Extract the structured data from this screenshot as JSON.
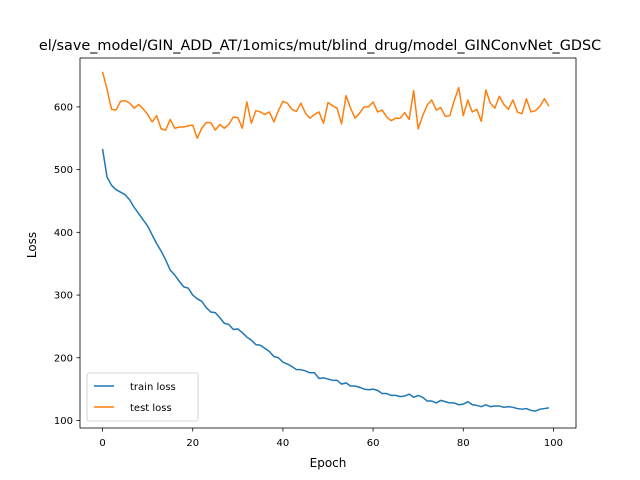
{
  "chart_data": {
    "type": "line",
    "title": "el/save_model/GIN_ADD_AT/1omics/mut/blind_drug/model_GINConvNet_GDSC",
    "xlabel": "Epoch",
    "ylabel": "Loss",
    "xlim": [
      -5,
      105
    ],
    "ylim": [
      88,
      678
    ],
    "xticks": [
      0,
      20,
      40,
      60,
      80,
      100
    ],
    "yticks": [
      100,
      200,
      300,
      400,
      500,
      600
    ],
    "grid": false,
    "legend_position": "lower-left",
    "series": [
      {
        "name": "train loss",
        "color": "#1f77b4",
        "x": [
          0,
          1,
          2,
          3,
          4,
          5,
          6,
          7,
          8,
          9,
          10,
          11,
          12,
          13,
          14,
          15,
          16,
          17,
          18,
          19,
          20,
          21,
          22,
          23,
          24,
          25,
          26,
          27,
          28,
          29,
          30,
          31,
          32,
          33,
          34,
          35,
          36,
          37,
          38,
          39,
          40,
          41,
          42,
          43,
          44,
          45,
          46,
          47,
          48,
          49,
          50,
          51,
          52,
          53,
          54,
          55,
          56,
          57,
          58,
          59,
          60,
          61,
          62,
          63,
          64,
          65,
          66,
          67,
          68,
          69,
          70,
          71,
          72,
          73,
          74,
          75,
          76,
          77,
          78,
          79,
          80,
          81,
          82,
          83,
          84,
          85,
          86,
          87,
          88,
          89,
          90,
          91,
          92,
          93,
          94,
          95,
          96,
          97,
          98,
          99
        ],
        "y": [
          533,
          488,
          475,
          468,
          464,
          460,
          452,
          440,
          430,
          420,
          410,
          396,
          382,
          370,
          356,
          340,
          332,
          322,
          313,
          311,
          300,
          294,
          290,
          280,
          273,
          272,
          264,
          255,
          253,
          245,
          246,
          240,
          233,
          228,
          221,
          220,
          215,
          210,
          202,
          200,
          193,
          190,
          186,
          181,
          181,
          179,
          176,
          176,
          167,
          168,
          166,
          164,
          164,
          158,
          160,
          155,
          155,
          153,
          150,
          149,
          150,
          148,
          143,
          143,
          140,
          140,
          138,
          139,
          142,
          137,
          140,
          137,
          131,
          131,
          128,
          132,
          130,
          128,
          128,
          125,
          126,
          130,
          125,
          124,
          122,
          125,
          122,
          123,
          123,
          121,
          122,
          121,
          119,
          118,
          119,
          116,
          115,
          118,
          119,
          120
        ]
      },
      {
        "name": "test loss",
        "color": "#ff7f0e",
        "x": [
          0,
          1,
          2,
          3,
          4,
          5,
          6,
          7,
          8,
          9,
          10,
          11,
          12,
          13,
          14,
          15,
          16,
          17,
          18,
          19,
          20,
          21,
          22,
          23,
          24,
          25,
          26,
          27,
          28,
          29,
          30,
          31,
          32,
          33,
          34,
          35,
          36,
          37,
          38,
          39,
          40,
          41,
          42,
          43,
          44,
          45,
          46,
          47,
          48,
          49,
          50,
          51,
          52,
          53,
          54,
          55,
          56,
          57,
          58,
          59,
          60,
          61,
          62,
          63,
          64,
          65,
          66,
          67,
          68,
          69,
          70,
          71,
          72,
          73,
          74,
          75,
          76,
          77,
          78,
          79,
          80,
          81,
          82,
          83,
          84,
          85,
          86,
          87,
          88,
          89,
          90,
          91,
          92,
          93,
          94,
          95,
          96,
          97,
          98,
          99
        ],
        "y": [
          656,
          628,
          596,
          595,
          609,
          610,
          606,
          598,
          604,
          597,
          588,
          576,
          586,
          565,
          563,
          580,
          566,
          568,
          568,
          570,
          571,
          550,
          566,
          575,
          575,
          563,
          572,
          566,
          572,
          584,
          583,
          566,
          608,
          574,
          594,
          592,
          588,
          592,
          576,
          594,
          609,
          606,
          596,
          593,
          606,
          590,
          582,
          588,
          592,
          574,
          607,
          602,
          598,
          573,
          618,
          598,
          582,
          590,
          600,
          600,
          608,
          592,
          595,
          584,
          578,
          582,
          582,
          591,
          580,
          626,
          565,
          586,
          603,
          611,
          595,
          599,
          585,
          586,
          610,
          631,
          586,
          611,
          592,
          596,
          577,
          627,
          606,
          598,
          617,
          604,
          596,
          611,
          592,
          589,
          613,
          592,
          594,
          601,
          613,
          601
        ]
      }
    ]
  }
}
